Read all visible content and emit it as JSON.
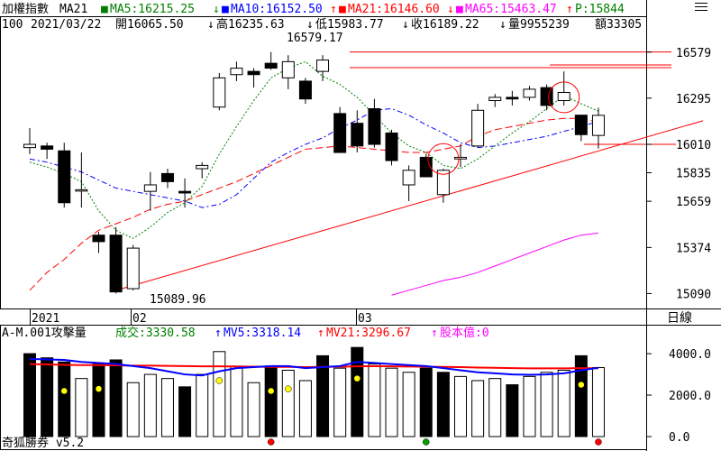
{
  "header": {
    "index_name": "加權指數",
    "ma_label": "MA21",
    "ma5": "MA5:16215.25",
    "ma10": "MA10:16152.50",
    "ma21": "MA21:16146.60",
    "ma65": "MA65:15463.47",
    "p": "P:15844",
    "line2": {
      "period": "100",
      "date": "2021/03/22",
      "open": "開16065.50",
      "high": "高16235.63",
      "low": "低15983.77",
      "close": "收16189.22",
      "volume": "量9955239",
      "amount": "額33305"
    }
  },
  "price_axis": {
    "ticks": [
      "16579",
      "16295",
      "16010",
      "15835",
      "15659",
      "15374",
      "15090"
    ]
  },
  "annotations": {
    "high_label": "16579.17",
    "low_label": "15089.96"
  },
  "date_axis": {
    "labels": [
      "2021",
      "02",
      "03"
    ],
    "period_label": "日線"
  },
  "volume_header": {
    "title": "A-M.001攻擊量",
    "turnover": "成交:3330.58",
    "mv5": "MV5:3318.14",
    "mv21": "MV21:3296.67",
    "share_capital": "股本億:0"
  },
  "volume_axis": {
    "ticks": [
      "4000.0",
      "2000.0",
      "0.0"
    ]
  },
  "footer": {
    "brand": "奇狐勝券 v5.2"
  },
  "icons": {
    "menu": "hamburger-menu-icon"
  },
  "colors": {
    "up_arrow": "#ff0000",
    "down_arrow": "#008000",
    "ma5": "#008000",
    "ma10": "#0000ff",
    "ma21": "#ff0000",
    "ma65": "#ff00ff",
    "p": "#008000"
  },
  "chart_data": {
    "type": "candlestick",
    "price_range": [
      15020,
      16700
    ],
    "volume_range": [
      0,
      4700
    ],
    "candles": [
      {
        "o": 15990,
        "h": 16110,
        "l": 15950,
        "c": 16010
      },
      {
        "o": 16000,
        "h": 16020,
        "l": 15920,
        "c": 15980
      },
      {
        "o": 15970,
        "h": 16020,
        "l": 15620,
        "c": 15650
      },
      {
        "o": 15730,
        "h": 15960,
        "l": 15620,
        "c": 15730
      },
      {
        "o": 15450,
        "h": 15470,
        "l": 15340,
        "c": 15410
      },
      {
        "o": 15450,
        "h": 15500,
        "l": 15090,
        "c": 15100
      },
      {
        "o": 15120,
        "h": 15390,
        "l": 15110,
        "c": 15370
      },
      {
        "o": 15720,
        "h": 15840,
        "l": 15600,
        "c": 15760
      },
      {
        "o": 15830,
        "h": 15860,
        "l": 15740,
        "c": 15780
      },
      {
        "o": 15720,
        "h": 15800,
        "l": 15620,
        "c": 15710
      },
      {
        "o": 15860,
        "h": 15900,
        "l": 15800,
        "c": 15880
      },
      {
        "o": 16240,
        "h": 16450,
        "l": 16220,
        "c": 16420
      },
      {
        "o": 16440,
        "h": 16520,
        "l": 16400,
        "c": 16480
      },
      {
        "o": 16460,
        "h": 16480,
        "l": 16360,
        "c": 16440
      },
      {
        "o": 16510,
        "h": 16579,
        "l": 16470,
        "c": 16480
      },
      {
        "o": 16420,
        "h": 16560,
        "l": 16350,
        "c": 16520
      },
      {
        "o": 16400,
        "h": 16420,
        "l": 16260,
        "c": 16290
      },
      {
        "o": 16460,
        "h": 16560,
        "l": 16400,
        "c": 16530
      },
      {
        "o": 16200,
        "h": 16240,
        "l": 15960,
        "c": 15960
      },
      {
        "o": 16140,
        "h": 16220,
        "l": 15960,
        "c": 16000
      },
      {
        "o": 16230,
        "h": 16290,
        "l": 15990,
        "c": 16010
      },
      {
        "o": 16080,
        "h": 16100,
        "l": 15880,
        "c": 15910
      },
      {
        "o": 15760,
        "h": 15880,
        "l": 15660,
        "c": 15850
      },
      {
        "o": 15930,
        "h": 15950,
        "l": 15820,
        "c": 15810
      },
      {
        "o": 15700,
        "h": 15860,
        "l": 15650,
        "c": 15850
      },
      {
        "o": 15920,
        "h": 16010,
        "l": 15870,
        "c": 15930
      },
      {
        "o": 16000,
        "h": 16260,
        "l": 15990,
        "c": 16220
      },
      {
        "o": 16280,
        "h": 16320,
        "l": 16240,
        "c": 16300
      },
      {
        "o": 16300,
        "h": 16340,
        "l": 16250,
        "c": 16290
      },
      {
        "o": 16300,
        "h": 16370,
        "l": 16280,
        "c": 16350
      },
      {
        "o": 16360,
        "h": 16380,
        "l": 16220,
        "c": 16250
      },
      {
        "o": 16280,
        "h": 16460,
        "l": 16250,
        "c": 16330
      },
      {
        "o": 16190,
        "h": 16190,
        "l": 16030,
        "c": 16070
      },
      {
        "o": 16065,
        "h": 16236,
        "l": 15984,
        "c": 16189
      }
    ],
    "ma5": [
      15900,
      15870,
      15830,
      15780,
      15600,
      15480,
      15430,
      15500,
      15590,
      15650,
      15750,
      15950,
      16120,
      16280,
      16420,
      16480,
      16520,
      16430,
      16380,
      16300,
      16190,
      16080,
      16000,
      15960,
      15880,
      15860,
      15920,
      16000,
      16080,
      16150,
      16230,
      16310,
      16260,
      16215
    ],
    "ma10": [
      15920,
      15900,
      15870,
      15840,
      15790,
      15740,
      15720,
      15700,
      15680,
      15660,
      15620,
      15640,
      15700,
      15800,
      15900,
      15960,
      16010,
      16050,
      16110,
      16160,
      16220,
      16230,
      16190,
      16130,
      16080,
      16020,
      15990,
      16000,
      16020,
      16040,
      16060,
      16090,
      16120,
      16152
    ],
    "ma21": [
      15110,
      15220,
      15300,
      15400,
      15480,
      15520,
      15560,
      15610,
      15640,
      15660,
      15700,
      15740,
      15780,
      15830,
      15880,
      15930,
      15980,
      15990,
      16000,
      15990,
      15980,
      15970,
      15960,
      15960,
      15980,
      16000,
      16060,
      16100,
      16120,
      16140,
      16160,
      16170,
      16170,
      16147
    ],
    "ma65": [
      15080,
      15110,
      15140,
      15170,
      15190,
      15220,
      15260,
      15300,
      15340,
      15380,
      15420,
      15450,
      15463
    ],
    "resistance_levels": [
      16580,
      16550,
      16500,
      16010
    ],
    "trendline": {
      "from": [
        5,
        15090
      ],
      "to_price_at_end": 16200
    },
    "volume": [
      {
        "v": 4000,
        "dark": true
      },
      {
        "v": 3800,
        "dark": true
      },
      {
        "v": 3600,
        "dark": true
      },
      {
        "v": 2800,
        "dark": false
      },
      {
        "v": 3500,
        "dark": true
      },
      {
        "v": 3700,
        "dark": true
      },
      {
        "v": 2600,
        "dark": false
      },
      {
        "v": 3000,
        "dark": false
      },
      {
        "v": 2800,
        "dark": false
      },
      {
        "v": 2400,
        "dark": true
      },
      {
        "v": 3000,
        "dark": false
      },
      {
        "v": 4100,
        "dark": false
      },
      {
        "v": 3400,
        "dark": false
      },
      {
        "v": 2600,
        "dark": false
      },
      {
        "v": 3400,
        "dark": true
      },
      {
        "v": 3200,
        "dark": false
      },
      {
        "v": 2700,
        "dark": false
      },
      {
        "v": 3900,
        "dark": true
      },
      {
        "v": 3300,
        "dark": false
      },
      {
        "v": 4300,
        "dark": true
      },
      {
        "v": 3500,
        "dark": false
      },
      {
        "v": 3300,
        "dark": false
      },
      {
        "v": 3100,
        "dark": false
      },
      {
        "v": 3300,
        "dark": true
      },
      {
        "v": 3100,
        "dark": true
      },
      {
        "v": 2900,
        "dark": false
      },
      {
        "v": 2700,
        "dark": false
      },
      {
        "v": 2800,
        "dark": false
      },
      {
        "v": 2500,
        "dark": true
      },
      {
        "v": 2900,
        "dark": false
      },
      {
        "v": 3100,
        "dark": false
      },
      {
        "v": 3200,
        "dark": false
      },
      {
        "v": 3900,
        "dark": true
      },
      {
        "v": 3330,
        "dark": false
      }
    ],
    "mv5": [
      3750,
      3720,
      3700,
      3600,
      3550,
      3500,
      3400,
      3300,
      3150,
      3000,
      2950,
      3150,
      3300,
      3350,
      3400,
      3400,
      3300,
      3350,
      3400,
      3600,
      3550,
      3500,
      3450,
      3400,
      3300,
      3200,
      3100,
      3050,
      3000,
      2980,
      3000,
      3050,
      3200,
      3318
    ],
    "mv21": [
      3500,
      3480,
      3460,
      3450,
      3450,
      3440,
      3420,
      3420,
      3410,
      3400,
      3390,
      3390,
      3380,
      3370,
      3360,
      3360,
      3350,
      3360,
      3370,
      3390,
      3400,
      3390,
      3380,
      3370,
      3360,
      3350,
      3330,
      3320,
      3300,
      3290,
      3290,
      3290,
      3300,
      3297
    ],
    "volume_markers": [
      {
        "i": 2,
        "value": 2200,
        "color": "#ffff00"
      },
      {
        "i": 4,
        "value": 2300,
        "color": "#ffff00"
      },
      {
        "i": 11,
        "value": 2700,
        "color": "#ffff00"
      },
      {
        "i": 14,
        "value": 2200,
        "color": "#ffff00"
      },
      {
        "i": 15,
        "value": 2300,
        "color": "#ffff00"
      },
      {
        "i": 19,
        "value": 2800,
        "color": "#ffff00"
      },
      {
        "i": 32,
        "value": 2500,
        "color": "#ffff00"
      },
      {
        "i": 14,
        "value": -100,
        "color": "#ff0000"
      },
      {
        "i": 23,
        "value": -100,
        "color": "#00a000"
      },
      {
        "i": 33,
        "value": -100,
        "color": "#ff0000"
      }
    ],
    "circles": [
      {
        "i": 24,
        "price": 15920
      },
      {
        "i": 31,
        "price": 16300
      }
    ]
  }
}
